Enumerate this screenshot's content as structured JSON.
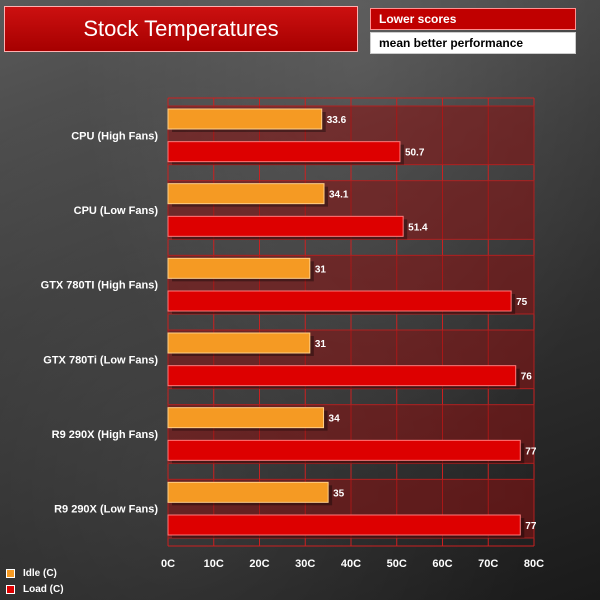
{
  "header": {
    "title": "Stock Temperatures",
    "note_primary": "Lower scores",
    "note_secondary": "mean better performance"
  },
  "colors": {
    "idle": "#f59a23",
    "load": "#dd0000",
    "group_bg": "#8b1010",
    "grid": "#cc2020"
  },
  "chart_data": {
    "type": "bar",
    "orientation": "horizontal",
    "title": "Stock Temperatures",
    "categories": [
      "CPU (High Fans)",
      "CPU (Low Fans)",
      "GTX 780TI (High Fans)",
      "GTX 780Ti (Low Fans)",
      "R9 290X (High Fans)",
      "R9 290X (Low Fans)"
    ],
    "series": [
      {
        "name": "Idle (C)",
        "values": [
          33.6,
          34.1,
          31,
          31,
          34,
          35
        ]
      },
      {
        "name": "Load (C)",
        "values": [
          50.7,
          51.4,
          75,
          76,
          77,
          77
        ]
      }
    ],
    "value_labels": [
      [
        "33.6",
        "34.1",
        "31",
        "31",
        "34",
        "35"
      ],
      [
        "50.7",
        "51.4",
        "75",
        "76",
        "77",
        "77"
      ]
    ],
    "xlim": [
      0,
      80
    ],
    "xticks": [
      "0C",
      "10C",
      "20C",
      "30C",
      "40C",
      "50C",
      "60C",
      "70C",
      "80C"
    ],
    "legend_position": "bottom-left",
    "grid": true
  }
}
